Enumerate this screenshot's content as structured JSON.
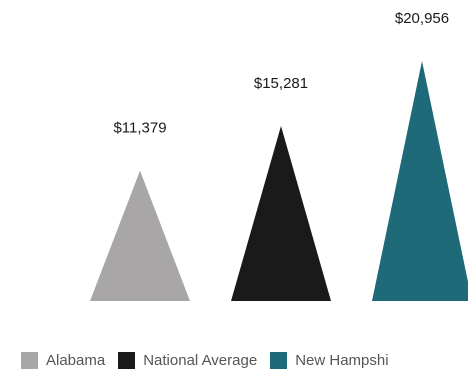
{
  "chart_data": {
    "type": "bar",
    "shape": "triangle",
    "categories": [
      "Alabama",
      "National Average",
      "New Hampshire"
    ],
    "values": [
      11379,
      15281,
      20956
    ],
    "value_labels": [
      "$11,379",
      "$15,281",
      "$20,956"
    ],
    "colors": [
      "#a8a6a7",
      "#1a1a1a",
      "#1e6a78"
    ],
    "legend": [
      "Alabama",
      "National Average",
      "New Hampshi"
    ],
    "legend_placement": "bottom",
    "ylim": [
      0,
      20956
    ],
    "grid": false
  }
}
